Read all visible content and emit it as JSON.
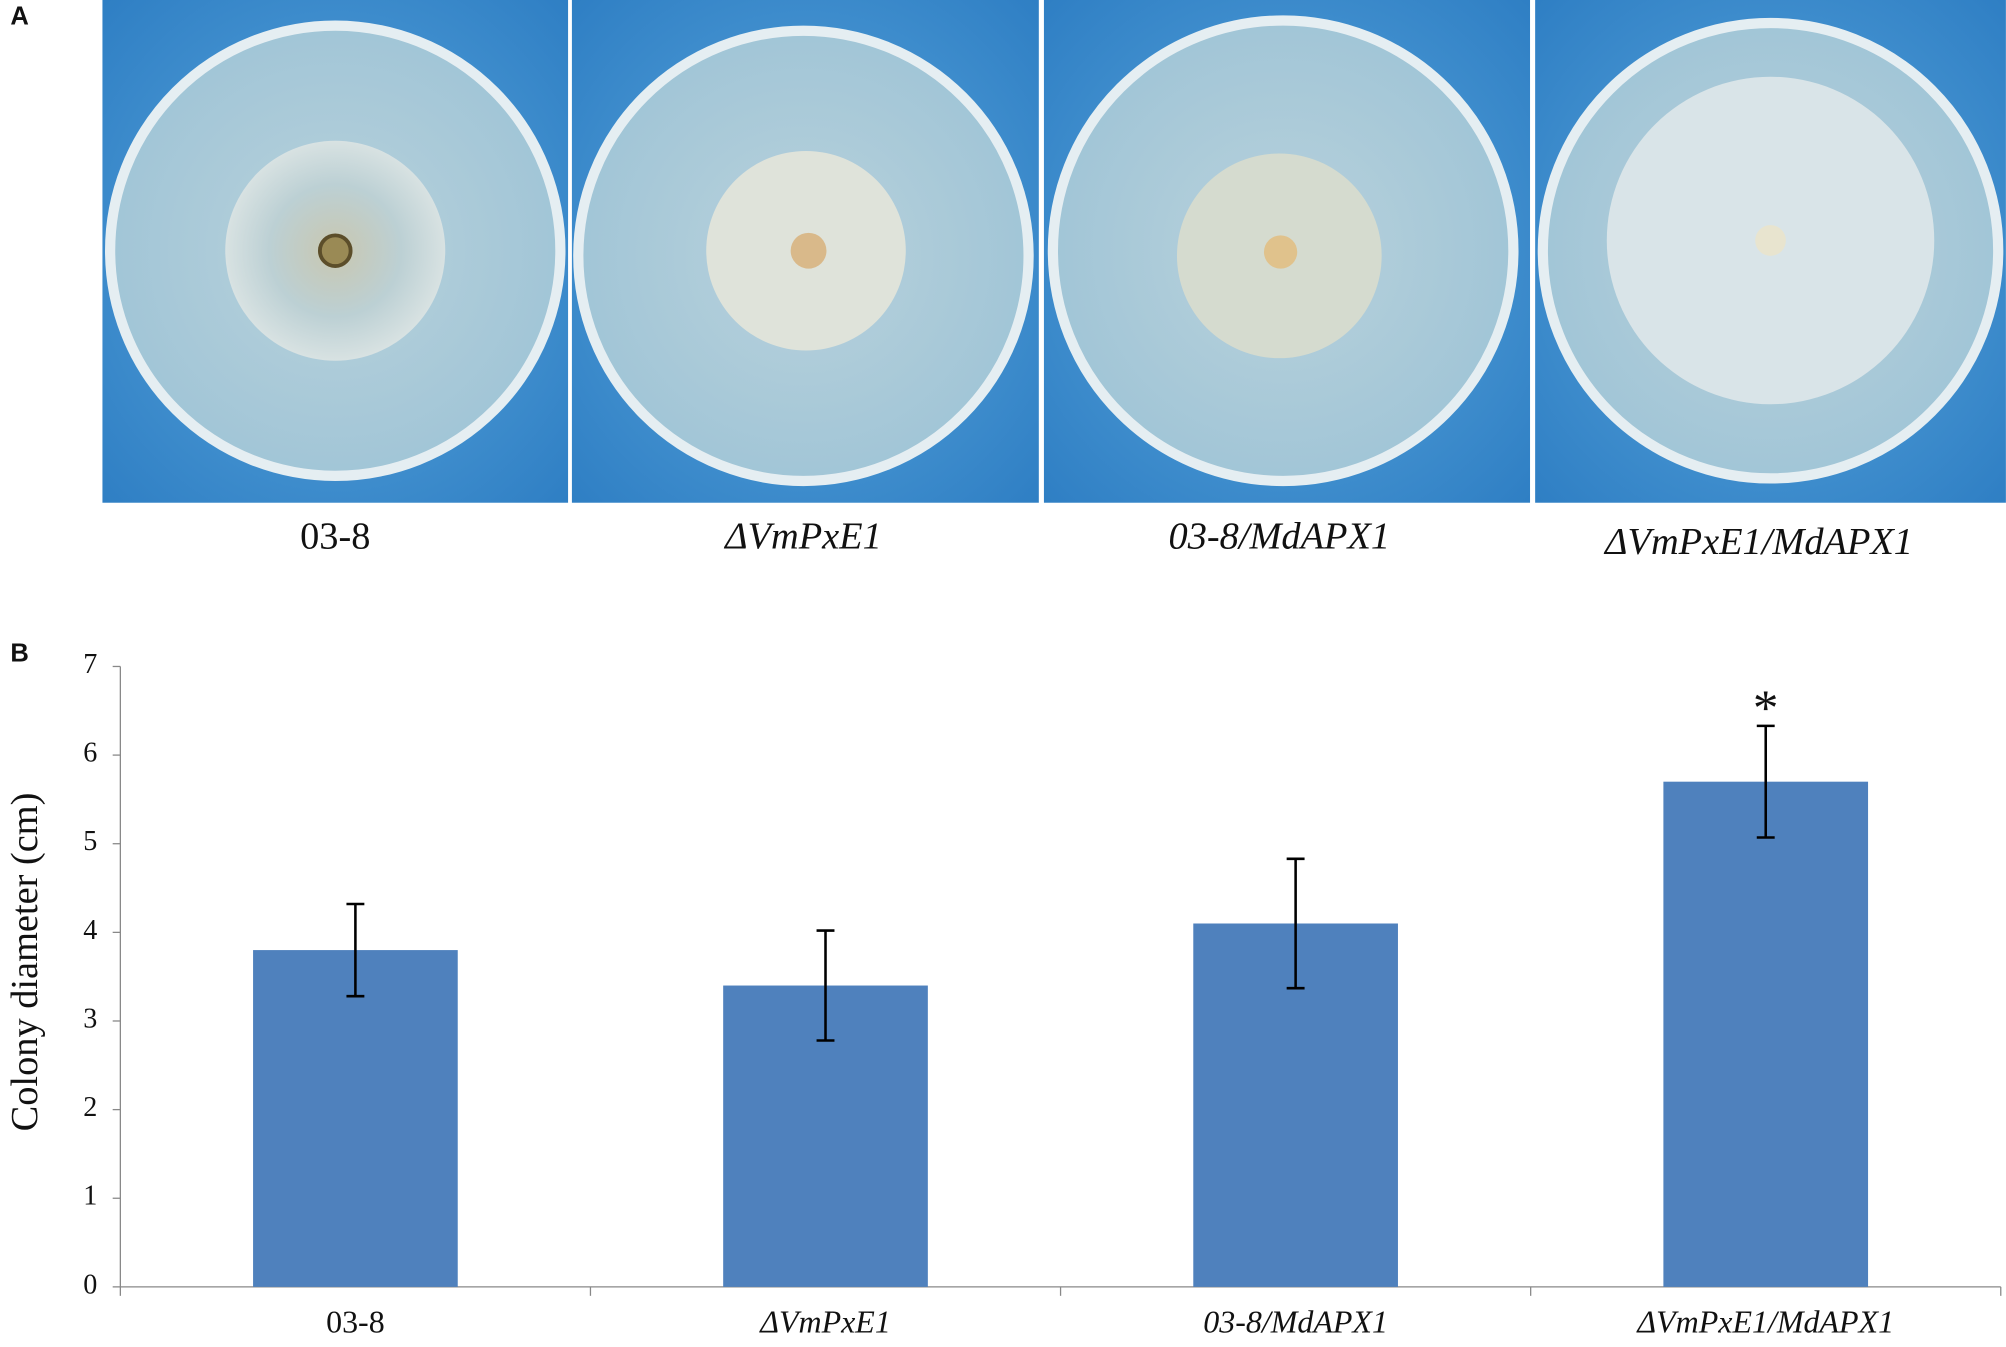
{
  "panels": [
    "A",
    "B"
  ],
  "chart_data": {
    "type": "bar",
    "categories": [
      "03-8",
      "ΔVmPxE1",
      "03-8/MdAPX1",
      "ΔVmPxE1/MdAPX1"
    ],
    "values": [
      3.8,
      3.4,
      4.1,
      5.7
    ],
    "errors": [
      0.52,
      0.62,
      0.73,
      0.63
    ],
    "color": "#4f81bd",
    "ylabel": "Colony diameter (cm)",
    "ylim": [
      0,
      7
    ],
    "yticks": [
      0,
      1,
      2,
      3,
      4,
      5,
      6,
      7
    ],
    "annotations": [
      {
        "text": "*",
        "category": "ΔVmPxE1/MdAPX1"
      }
    ],
    "grid": false
  }
}
